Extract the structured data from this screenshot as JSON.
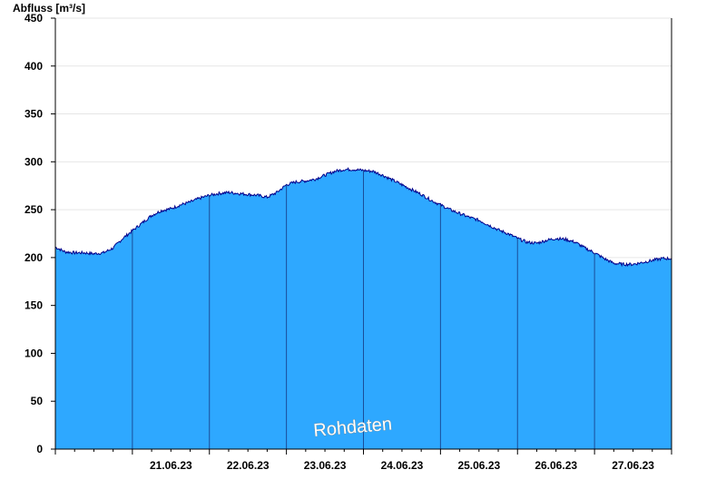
{
  "chart_data": {
    "type": "area",
    "ylabel": "Abfluss [m³/s]",
    "ylim": [
      0,
      450
    ],
    "yticks": [
      0,
      50,
      100,
      150,
      200,
      250,
      300,
      350,
      400,
      450
    ],
    "xlim": [
      "20.06.23 00:00",
      "28.06.23 00:00"
    ],
    "xtick_labels": [
      "21.06.23",
      "22.06.23",
      "23.06.23",
      "24.06.23",
      "25.06.23",
      "26.06.23",
      "27.06.23"
    ],
    "day_boundaries": [
      "21.06.23 00:00",
      "22.06.23 00:00",
      "23.06.23 00:00",
      "24.06.23 00:00",
      "25.06.23 00:00",
      "26.06.23 00:00",
      "27.06.23 00:00"
    ],
    "grid": true,
    "watermark": "Rohdaten",
    "series": [
      {
        "color": "#2ea8ff",
        "line_color": "#00008b",
        "x": [
          "20.06.23 00:00",
          "20.06.23 03:00",
          "20.06.23 06:00",
          "20.06.23 09:00",
          "20.06.23 12:00",
          "20.06.23 15:00",
          "20.06.23 18:00",
          "20.06.23 21:00",
          "21.06.23 00:00",
          "21.06.23 03:00",
          "21.06.23 06:00",
          "21.06.23 09:00",
          "21.06.23 12:00",
          "21.06.23 15:00",
          "21.06.23 18:00",
          "21.06.23 21:00",
          "22.06.23 00:00",
          "22.06.23 03:00",
          "22.06.23 06:00",
          "22.06.23 09:00",
          "22.06.23 12:00",
          "22.06.23 15:00",
          "22.06.23 18:00",
          "22.06.23 21:00",
          "23.06.23 00:00",
          "23.06.23 03:00",
          "23.06.23 06:00",
          "23.06.23 09:00",
          "23.06.23 12:00",
          "23.06.23 15:00",
          "23.06.23 18:00",
          "23.06.23 21:00",
          "24.06.23 00:00",
          "24.06.23 03:00",
          "24.06.23 06:00",
          "24.06.23 09:00",
          "24.06.23 12:00",
          "24.06.23 15:00",
          "24.06.23 18:00",
          "24.06.23 21:00",
          "25.06.23 00:00",
          "25.06.23 03:00",
          "25.06.23 06:00",
          "25.06.23 09:00",
          "25.06.23 12:00",
          "25.06.23 15:00",
          "25.06.23 18:00",
          "25.06.23 21:00",
          "26.06.23 00:00",
          "26.06.23 03:00",
          "26.06.23 06:00",
          "26.06.23 09:00",
          "26.06.23 12:00",
          "26.06.23 15:00",
          "26.06.23 18:00",
          "26.06.23 21:00",
          "27.06.23 00:00",
          "27.06.23 03:00",
          "27.06.23 06:00",
          "27.06.23 09:00",
          "27.06.23 12:00",
          "27.06.23 15:00",
          "27.06.23 18:00",
          "27.06.23 21:00",
          "28.06.23 00:00"
        ],
        "values": [
          211,
          206,
          205,
          205,
          204,
          205,
          210,
          220,
          228,
          236,
          244,
          249,
          251,
          255,
          258,
          262,
          265,
          267,
          268,
          267,
          266,
          265,
          263,
          268,
          276,
          279,
          280,
          282,
          286,
          290,
          292,
          292,
          291,
          290,
          286,
          281,
          276,
          271,
          266,
          260,
          255,
          250,
          246,
          242,
          239,
          234,
          229,
          225,
          220,
          216,
          215,
          218,
          220,
          219,
          216,
          210,
          205,
          199,
          194,
          193,
          193,
          195,
          197,
          199,
          199
        ]
      }
    ]
  }
}
